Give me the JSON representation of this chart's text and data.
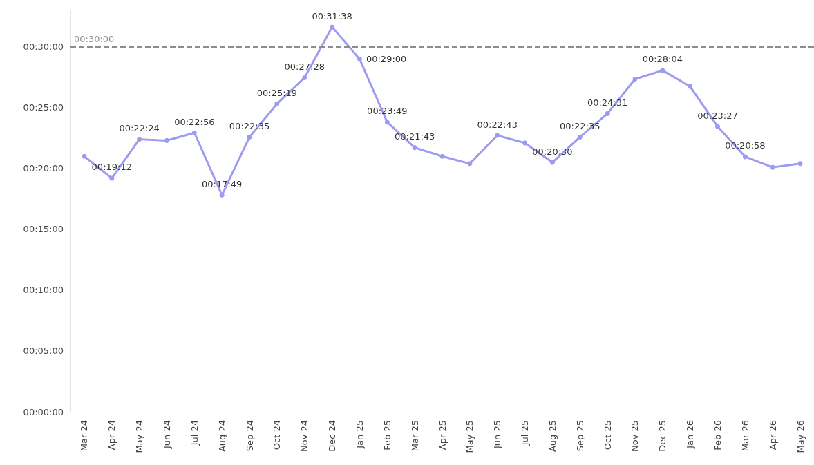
{
  "chart_data": {
    "type": "line",
    "categories": [
      "Mar 24",
      "Apr 24",
      "May 24",
      "Jun 24",
      "Jul 24",
      "Aug 24",
      "Sep 24",
      "Oct 24",
      "Nov 24",
      "Dec 24",
      "Jan 25",
      "Feb 25",
      "Mar 25",
      "Apr 25",
      "May 25",
      "Jun 25",
      "Jul 25",
      "Aug 25",
      "Sep 25",
      "Oct 25",
      "Nov 25",
      "Dec 25",
      "Jan 26",
      "Feb 26",
      "Mar 26",
      "Apr 26",
      "May 26"
    ],
    "values": [
      21.0,
      19.2,
      22.4,
      22.3,
      22.933,
      17.817,
      22.583,
      25.317,
      27.467,
      31.633,
      29,
      23.817,
      21.717,
      21.0,
      20.4,
      22.717,
      22.1,
      20.5,
      22.583,
      24.517,
      27.35,
      28.067,
      26.75,
      23.45,
      20.967,
      20.1,
      20.4
    ],
    "value_labels": [
      null,
      "00:19:12",
      "00:22:24",
      null,
      "00:22:56",
      "00:17:49",
      "00:22:35",
      "00:25:19",
      "00:27:28",
      "00:31:38",
      "00:29:00",
      "00:23:49",
      "00:21:43",
      null,
      null,
      "00:22:43",
      null,
      "00:20:30",
      "00:22:35",
      "00:24:31",
      null,
      "00:28:04",
      null,
      "00:23:27",
      "00:20:58",
      null,
      null
    ],
    "color": "#9d9af2",
    "ylim": [
      0,
      33
    ],
    "yticks": [
      {
        "value": 0,
        "label": "00:00:00"
      },
      {
        "value": 5,
        "label": "00:05:00"
      },
      {
        "value": 10,
        "label": "00:10:00"
      },
      {
        "value": 15,
        "label": "00:15:00"
      },
      {
        "value": 20,
        "label": "00:20:00"
      },
      {
        "value": 25,
        "label": "00:25:00"
      },
      {
        "value": 30,
        "label": "00:30:00"
      }
    ],
    "ref_lines": [
      {
        "axis": "y",
        "value": 30,
        "label": "00:30:00",
        "color": "#8c8c8c",
        "line_style": "dashed"
      }
    ],
    "marker": "circle",
    "grid": false
  }
}
